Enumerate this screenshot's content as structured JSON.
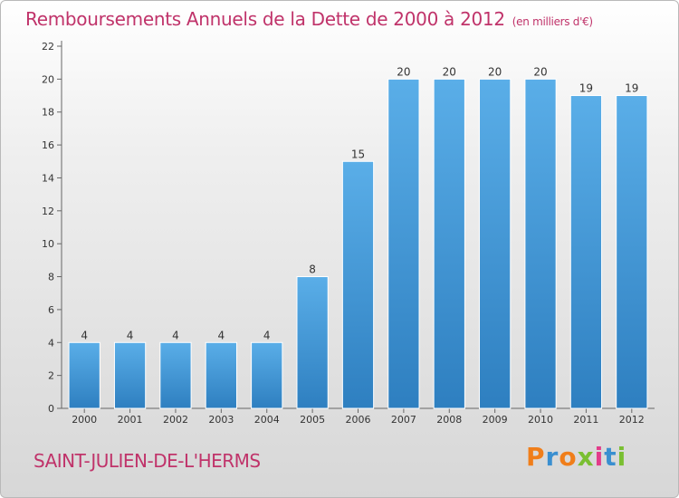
{
  "header": {
    "title": "Remboursements Annuels de la Dette de 2000 à 2012",
    "unit": "(en milliers d'€)"
  },
  "footer": {
    "commune": "SAINT-JULIEN-DE-L'HERMS",
    "logo_letters": [
      "P",
      "r",
      "o",
      "x",
      "i",
      "t",
      "i"
    ],
    "logo_colors": [
      "#f07e1a",
      "#3a8fd0",
      "#f07e1a",
      "#7abf32",
      "#e23c8a",
      "#3a8fd0",
      "#7abf32"
    ]
  },
  "chart_data": {
    "type": "bar",
    "categories": [
      "2000",
      "2001",
      "2002",
      "2003",
      "2004",
      "2005",
      "2006",
      "2007",
      "2008",
      "2009",
      "2010",
      "2011",
      "2012"
    ],
    "values": [
      4,
      4,
      4,
      4,
      4,
      8,
      15,
      20,
      20,
      20,
      20,
      19,
      19
    ],
    "ylim": [
      0,
      22
    ],
    "yticks": [
      0,
      2,
      4,
      6,
      8,
      10,
      12,
      14,
      16,
      18,
      20,
      22
    ],
    "grid": false,
    "bar_color": "#3d95d6",
    "bar_color_light": "#5aaee8",
    "bar_color_dark": "#2e7fc0"
  }
}
